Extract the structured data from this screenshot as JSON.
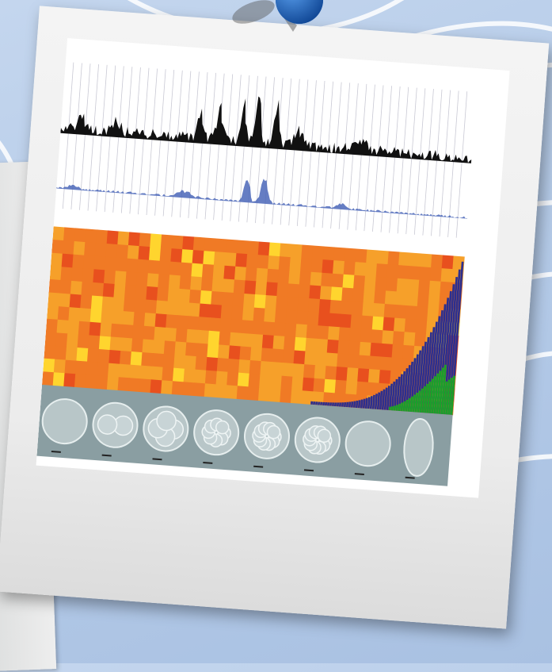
{
  "scene": {
    "background_color": "#b7cde9",
    "frame_color": "#f0f0f0",
    "pin_color": "#1565c0",
    "track_colors": [
      "#111111",
      "#4a66b8"
    ],
    "heatmap_palette": [
      "#e8501e",
      "#f07a25",
      "#f6a02a",
      "#ffd52e"
    ],
    "histogram_colors": [
      "#2d2f8e",
      "#1aa02a"
    ],
    "embryo_stages": 8
  }
}
